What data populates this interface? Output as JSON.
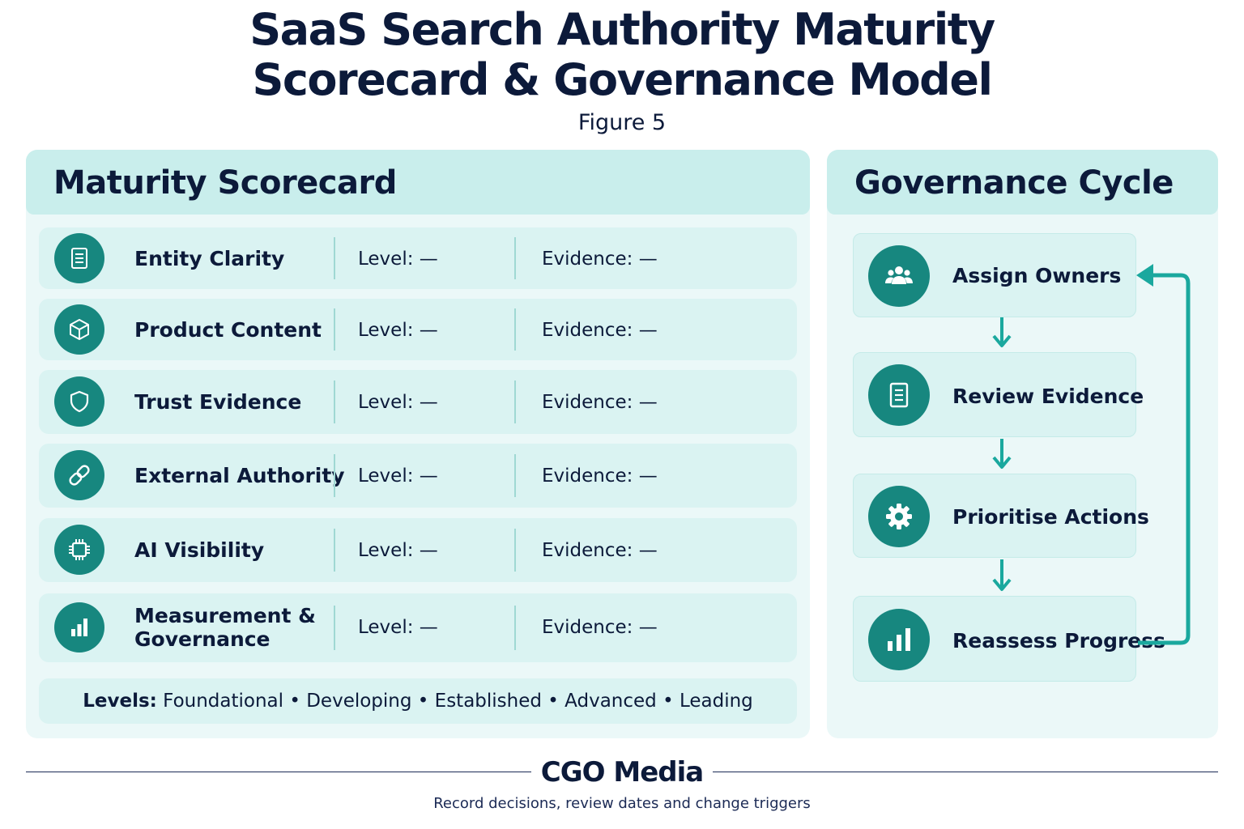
{
  "header": {
    "title_line1": "SaaS Search Authority Maturity",
    "title_line2": "Scorecard & Governance Model",
    "subtitle": "Figure 5"
  },
  "scorecard": {
    "heading": "Maturity Scorecard",
    "rows": [
      {
        "name": "Entity Clarity",
        "icon": "document-icon",
        "level": "Level: —",
        "evidence": "Evidence: —"
      },
      {
        "name": "Product Content",
        "icon": "cube-icon",
        "level": "Level: —",
        "evidence": "Evidence: —"
      },
      {
        "name": "Trust Evidence",
        "icon": "shield-icon",
        "level": "Level: —",
        "evidence": "Evidence: —"
      },
      {
        "name": "External Authority",
        "icon": "link-icon",
        "level": "Level: —",
        "evidence": "Evidence: —"
      },
      {
        "name": "AI Visibility",
        "icon": "chip-icon",
        "level": "Level: —",
        "evidence": "Evidence: —"
      },
      {
        "name_line1": "Measurement &",
        "name_line2": "Governance",
        "icon": "bar-chart-icon",
        "level": "Level: —",
        "evidence": "Evidence: —"
      }
    ],
    "levels_label": "Levels:",
    "levels_text": "Foundational • Developing • Established • Advanced • Leading"
  },
  "governance": {
    "heading": "Governance Cycle",
    "steps": [
      {
        "label": "Assign Owners",
        "icon": "people-icon"
      },
      {
        "label": "Review Evidence",
        "icon": "document-icon"
      },
      {
        "label": "Prioritise Actions",
        "icon": "gear-icon"
      },
      {
        "label": "Reassess Progress",
        "icon": "bar-chart-icon"
      }
    ]
  },
  "footer": {
    "brand": "CGO Media",
    "tagline": "Record decisions, review dates and change triggers"
  },
  "colors": {
    "accent": "#17877f",
    "arrow": "#1aa89e",
    "panel": "#ebf8f8",
    "header_band": "#c9eeec",
    "row": "#daf3f2",
    "text": "#0c1a3a"
  }
}
